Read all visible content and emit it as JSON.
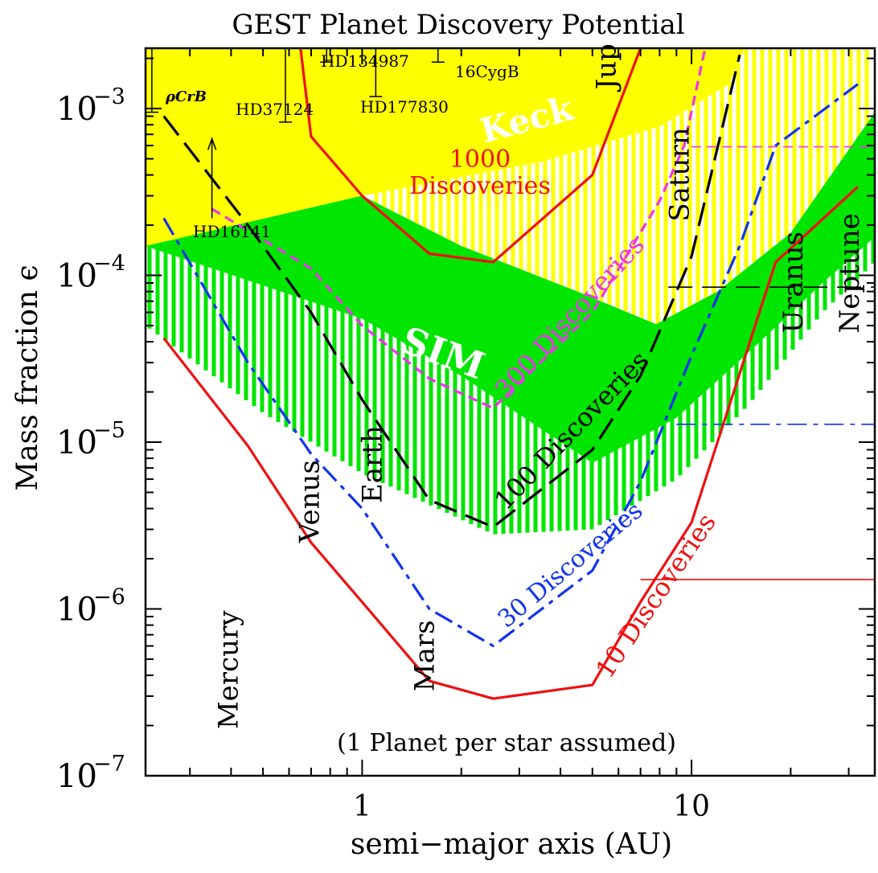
{
  "chart_data": {
    "type": "line",
    "title": "GEST Planet Discovery Potential",
    "xlabel": "semi−major axis (AU)",
    "ylabel": "Mass fraction ϵ",
    "x_scale": "log",
    "y_scale": "log",
    "xlim": [
      0.22,
      36
    ],
    "ylim": [
      1e-07,
      0.0023
    ],
    "x_ticks": [
      {
        "value": 1,
        "label": "1"
      },
      {
        "value": 10,
        "label": "10"
      }
    ],
    "y_ticks": [
      {
        "value": 1e-07,
        "base": "10",
        "exp": "−7"
      },
      {
        "value": 1e-06,
        "base": "10",
        "exp": "−6"
      },
      {
        "value": 1e-05,
        "base": "10",
        "exp": "−5"
      },
      {
        "value": 0.0001,
        "base": "10",
        "exp": "−4"
      },
      {
        "value": 0.001,
        "base": "10",
        "exp": "−3"
      }
    ],
    "note": "(1 Planet per star assumed)",
    "colors": {
      "keck_region": "#ffff00",
      "sim_region": "#00e600",
      "discoveries_1000": "#ee1111",
      "discoveries_300": "#ee33ee",
      "discoveries_100": "#000000",
      "discoveries_30": "#1133ee",
      "discoveries_10": "#ee1111"
    },
    "regions": [
      {
        "key": "keck",
        "label": "Keck",
        "solid_lower_edge": [
          [
            0.22,
            0.00015
          ],
          [
            1.0,
            0.0003
          ],
          [
            3.5,
            0.00048
          ],
          [
            8.0,
            0.00078
          ],
          [
            13.0,
            0.0014
          ],
          [
            14.5,
            0.0023
          ]
        ],
        "hatch_lower_edge": [
          [
            1.0,
            0.0003
          ],
          [
            2.0,
            0.00014
          ],
          [
            4.5,
            8e-05
          ],
          [
            7.8,
            5.1e-05
          ],
          [
            12.0,
            8e-05
          ],
          [
            20.0,
            0.00018
          ],
          [
            36.0,
            0.00045
          ]
        ]
      },
      {
        "key": "sim",
        "label": "SIM",
        "solid_upper_edge": [
          [
            0.22,
            0.00015
          ],
          [
            1.0,
            0.0003
          ],
          [
            2.0,
            0.00015
          ],
          [
            4.5,
            8e-05
          ],
          [
            7.8,
            5.1e-05
          ],
          [
            12.0,
            8e-05
          ],
          [
            20.0,
            0.00018
          ],
          [
            36.0,
            0.00095
          ]
        ],
        "solid_lower_edge": [
          [
            0.22,
            0.00015
          ],
          [
            1.0,
            5.5e-05
          ],
          [
            2.0,
            2.5e-05
          ],
          [
            5.0,
            7.5e-06
          ],
          [
            9.0,
            1.4e-05
          ],
          [
            15.0,
            3.5e-05
          ],
          [
            25.0,
            9e-05
          ],
          [
            36.0,
            0.00017
          ]
        ],
        "hatch_lower_edge": [
          [
            0.22,
            5e-05
          ],
          [
            0.5,
            1.5e-05
          ],
          [
            1.0,
            6.5e-06
          ],
          [
            2.5,
            2.8e-06
          ],
          [
            5.0,
            3e-06
          ],
          [
            9.0,
            6e-06
          ],
          [
            15.0,
            1.7e-05
          ],
          [
            25.0,
            6e-05
          ],
          [
            36.0,
            0.00012
          ]
        ]
      }
    ],
    "series": [
      {
        "name": "1000 Discoveries",
        "label_lines": [
          "1000",
          "Discoveries"
        ],
        "color": "#ee1111",
        "dash": "solid",
        "points": [
          [
            0.65,
            0.0023
          ],
          [
            0.7,
            0.00068
          ],
          [
            1.0,
            0.0003
          ],
          [
            1.6,
            0.000135
          ],
          [
            2.5,
            0.00012
          ],
          [
            5.0,
            0.0004
          ],
          [
            7.0,
            0.0023
          ]
        ]
      },
      {
        "name": "300 Discoveries",
        "label_lines": [
          "300 Discoveries"
        ],
        "color": "#ee33ee",
        "dash": "short",
        "points": [
          [
            0.35,
            0.00025
          ],
          [
            0.7,
            0.00011
          ],
          [
            1.0,
            5e-05
          ],
          [
            1.6,
            2.4e-05
          ],
          [
            2.5,
            1.6e-05
          ],
          [
            5.0,
            6e-05
          ],
          [
            8.0,
            0.00028
          ],
          [
            9.5,
            0.0006
          ],
          [
            11.0,
            0.0023
          ]
        ],
        "limit": {
          "from_x": 10.0,
          "y": 0.00059
        }
      },
      {
        "name": "100 Discoveries",
        "label_lines": [
          "100 Discoveries"
        ],
        "color": "#000000",
        "dash": "long",
        "points": [
          [
            0.25,
            0.0009
          ],
          [
            0.45,
            0.0002
          ],
          [
            0.7,
            6e-05
          ],
          [
            1.0,
            1.8e-05
          ],
          [
            1.6,
            4.5e-06
          ],
          [
            2.5,
            3.1e-06
          ],
          [
            5.0,
            9e-06
          ],
          [
            7.0,
            2.5e-05
          ],
          [
            10.0,
            0.00013
          ],
          [
            14.0,
            0.0021
          ]
        ],
        "limit": {
          "from_x": 8.5,
          "y": 8.5e-05
        }
      },
      {
        "name": "30 Discoveries",
        "label_lines": [
          "30 Discoveries"
        ],
        "color": "#1133ee",
        "dash": "dashdot",
        "points": [
          [
            0.25,
            0.00022
          ],
          [
            0.45,
            3e-05
          ],
          [
            0.7,
            8.5e-06
          ],
          [
            1.0,
            4e-06
          ],
          [
            1.6,
            1e-06
          ],
          [
            2.5,
            6e-07
          ],
          [
            5.0,
            1.7e-06
          ],
          [
            7.0,
            5.8e-06
          ],
          [
            10.0,
            3.3e-05
          ],
          [
            14.0,
            0.00015
          ],
          [
            18.0,
            0.0006
          ],
          [
            32.0,
            0.0014
          ]
        ],
        "limit": {
          "from_x": 9.0,
          "y": 1.28e-05
        }
      },
      {
        "name": "10 Discoveries",
        "label_lines": [
          "10 Discoveries"
        ],
        "color": "#ee1111",
        "dash": "solid",
        "points": [
          [
            0.25,
            4.2e-05
          ],
          [
            0.45,
            9.5e-06
          ],
          [
            0.7,
            2.5e-06
          ],
          [
            1.0,
            1.1e-06
          ],
          [
            1.6,
            3.7e-07
          ],
          [
            2.5,
            2.9e-07
          ],
          [
            5.0,
            3.5e-07
          ],
          [
            7.0,
            1.1e-06
          ],
          [
            10.0,
            3.3e-06
          ],
          [
            18.0,
            0.00012
          ],
          [
            32.0,
            0.00034
          ]
        ],
        "limit": {
          "from_x": 7.0,
          "y": 1.5e-06
        }
      }
    ],
    "planets": [
      {
        "name": "Mercury",
        "a": 0.387,
        "y": 1.9e-07
      },
      {
        "name": "Venus",
        "a": 0.723,
        "y": 2.5e-06
      },
      {
        "name": "Earth",
        "a": 1.0,
        "y": 4.3e-06
      },
      {
        "name": "Mars",
        "a": 1.524,
        "y": 3.2e-07
      },
      {
        "name": "Jup",
        "a": 5.2,
        "y": 0.0013
      },
      {
        "name": "Saturn",
        "a": 9.54,
        "y": 0.00021
      },
      {
        "name": "Uranus",
        "a": 19.2,
        "y": 4.5e-05
      },
      {
        "name": "Neptune",
        "a": 30.1,
        "y": 4.5e-05
      }
    ],
    "known_planets": [
      {
        "name": "ρCrB",
        "a": 0.23,
        "y": 0.00095,
        "err_hi": 0.0023
      },
      {
        "name": "HD37124",
        "a": 0.585,
        "y": 0.00083,
        "err_hi": 0.0023
      },
      {
        "name": "HD134987",
        "a": 0.78,
        "y": 0.0019,
        "err_hi": 0.0023
      },
      {
        "name": "HD177830",
        "a": 1.1,
        "y": 0.00118,
        "err_hi": 0.0023
      },
      {
        "name": "16CygB",
        "a": 1.7,
        "y": 0.0019,
        "err_hi": 0.0023
      },
      {
        "name": "HD16141",
        "a": 0.35,
        "y": 0.00022,
        "lower_limit": 0.00066
      }
    ]
  }
}
